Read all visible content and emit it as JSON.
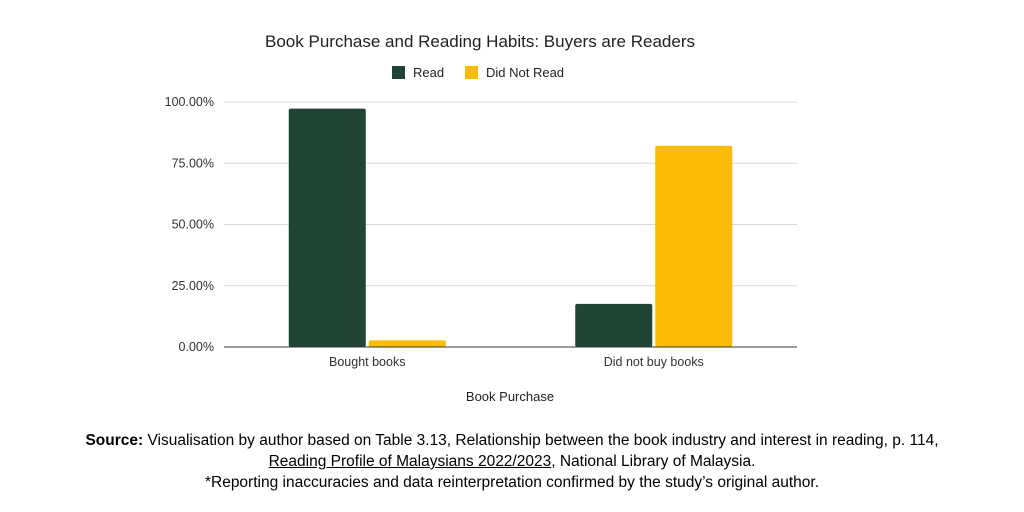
{
  "chart_data": {
    "type": "bar",
    "title": "Book Purchase and Reading Habits: Buyers are Readers",
    "xlabel": "Book Purchase",
    "ylabel": "",
    "categories": [
      "Bought books",
      "Did not buy books"
    ],
    "series": [
      {
        "name": "Read",
        "color": "#1f4434",
        "values": [
          97.3,
          17.6
        ]
      },
      {
        "name": "Did Not Read",
        "color": "#f9bb06",
        "values": [
          2.7,
          82.1
        ]
      }
    ],
    "ylim": [
      0,
      100
    ],
    "yticks": [
      "0.00%",
      "25.00%",
      "50.00%",
      "75.00%",
      "100.00%"
    ],
    "grid": true,
    "legend_position": "top-center"
  },
  "source": {
    "label": "Source:",
    "line1_text": " Visualisation by author based on Table 3.13, Relationship between the book industry and interest in reading, p. 114,",
    "link_text": "Reading Profile of Malaysians 2022/2023",
    "line2_text": ", National Library of Malaysia.",
    "note": "*Reporting inaccuracies and data reinterpretation confirmed by the study’s original author."
  }
}
